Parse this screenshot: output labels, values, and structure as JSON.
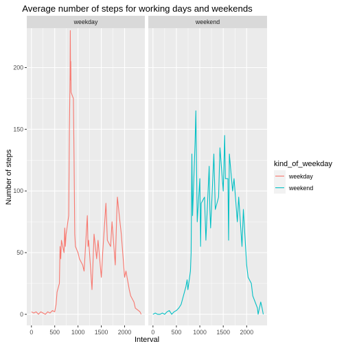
{
  "chart_data": {
    "type": "line",
    "title": "Average number of steps for working days and weekends",
    "xlabel": "Interval",
    "ylabel": "Number of steps",
    "xlim": [
      -100,
      2435
    ],
    "ylim": [
      -9,
      232
    ],
    "x_ticks": [
      0,
      500,
      1000,
      1500,
      2000
    ],
    "y_ticks": [
      0,
      50,
      100,
      150,
      200
    ],
    "grid": true,
    "legend_position": "right",
    "legend_title": "kind_of_weekday",
    "facets": [
      {
        "label": "weekday",
        "series": "weekday",
        "color": "#F8766D",
        "points": [
          [
            0,
            2
          ],
          [
            50,
            1
          ],
          [
            100,
            2
          ],
          [
            150,
            0
          ],
          [
            200,
            2
          ],
          [
            250,
            1
          ],
          [
            300,
            0
          ],
          [
            350,
            2
          ],
          [
            400,
            1
          ],
          [
            450,
            3
          ],
          [
            500,
            2
          ],
          [
            530,
            8
          ],
          [
            550,
            18
          ],
          [
            600,
            25
          ],
          [
            615,
            55
          ],
          [
            630,
            45
          ],
          [
            645,
            60
          ],
          [
            700,
            50
          ],
          [
            715,
            70
          ],
          [
            730,
            55
          ],
          [
            745,
            65
          ],
          [
            800,
            80
          ],
          [
            815,
            150
          ],
          [
            830,
            195
          ],
          [
            835,
            230
          ],
          [
            840,
            190
          ],
          [
            845,
            205
          ],
          [
            850,
            180
          ],
          [
            900,
            175
          ],
          [
            915,
            125
          ],
          [
            930,
            65
          ],
          [
            945,
            55
          ],
          [
            1000,
            50
          ],
          [
            1030,
            45
          ],
          [
            1100,
            40
          ],
          [
            1130,
            35
          ],
          [
            1200,
            80
          ],
          [
            1215,
            55
          ],
          [
            1230,
            60
          ],
          [
            1300,
            20
          ],
          [
            1345,
            65
          ],
          [
            1400,
            45
          ],
          [
            1430,
            60
          ],
          [
            1500,
            30
          ],
          [
            1530,
            50
          ],
          [
            1600,
            90
          ],
          [
            1630,
            60
          ],
          [
            1700,
            55
          ],
          [
            1730,
            75
          ],
          [
            1800,
            40
          ],
          [
            1830,
            80
          ],
          [
            1845,
            95
          ],
          [
            1900,
            75
          ],
          [
            1930,
            65
          ],
          [
            2000,
            30
          ],
          [
            2030,
            35
          ],
          [
            2100,
            20
          ],
          [
            2130,
            15
          ],
          [
            2200,
            10
          ],
          [
            2230,
            5
          ],
          [
            2300,
            3
          ],
          [
            2330,
            2
          ],
          [
            2355,
            0
          ]
        ]
      },
      {
        "label": "weekend",
        "series": "weekend",
        "color": "#00BFC4",
        "points": [
          [
            0,
            0
          ],
          [
            50,
            1
          ],
          [
            100,
            0
          ],
          [
            150,
            0
          ],
          [
            200,
            1
          ],
          [
            250,
            0
          ],
          [
            300,
            2
          ],
          [
            350,
            3
          ],
          [
            400,
            0
          ],
          [
            450,
            2
          ],
          [
            500,
            3
          ],
          [
            550,
            5
          ],
          [
            600,
            8
          ],
          [
            650,
            15
          ],
          [
            700,
            22
          ],
          [
            730,
            28
          ],
          [
            745,
            20
          ],
          [
            800,
            35
          ],
          [
            815,
            50
          ],
          [
            830,
            130
          ],
          [
            845,
            80
          ],
          [
            900,
            140
          ],
          [
            915,
            165
          ],
          [
            930,
            120
          ],
          [
            945,
            75
          ],
          [
            1000,
            110
          ],
          [
            1015,
            55
          ],
          [
            1030,
            90
          ],
          [
            1100,
            95
          ],
          [
            1130,
            60
          ],
          [
            1200,
            120
          ],
          [
            1215,
            85
          ],
          [
            1230,
            70
          ],
          [
            1300,
            130
          ],
          [
            1330,
            85
          ],
          [
            1400,
            95
          ],
          [
            1430,
            135
          ],
          [
            1500,
            100
          ],
          [
            1530,
            145
          ],
          [
            1545,
            110
          ],
          [
            1600,
            110
          ],
          [
            1615,
            60
          ],
          [
            1630,
            130
          ],
          [
            1700,
            100
          ],
          [
            1730,
            110
          ],
          [
            1800,
            75
          ],
          [
            1830,
            95
          ],
          [
            1900,
            55
          ],
          [
            1930,
            85
          ],
          [
            2000,
            40
          ],
          [
            2030,
            30
          ],
          [
            2100,
            25
          ],
          [
            2130,
            15
          ],
          [
            2200,
            8
          ],
          [
            2230,
            5
          ],
          [
            2245,
            0
          ],
          [
            2300,
            10
          ],
          [
            2330,
            5
          ],
          [
            2355,
            0
          ]
        ]
      }
    ],
    "series": [
      {
        "name": "weekday",
        "color": "#F8766D"
      },
      {
        "name": "weekend",
        "color": "#00BFC4"
      }
    ]
  }
}
